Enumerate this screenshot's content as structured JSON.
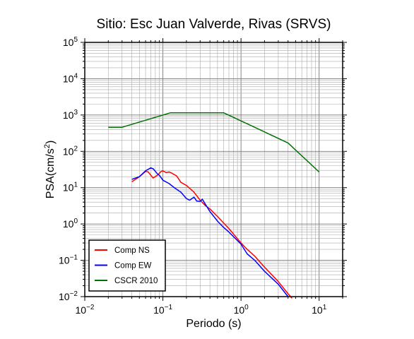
{
  "chart_data": {
    "type": "line",
    "title": "Sitio: Esc Juan Valverde, Rivas (SRVS)",
    "xlabel": "Periodo (s)",
    "ylabel": "PSA(cm/s²)",
    "x_scale": "log",
    "y_scale": "log",
    "xlim": [
      0.01,
      20
    ],
    "ylim": [
      0.01,
      100000
    ],
    "grid": true,
    "legend_position": "bottom-left",
    "x_ticks": [
      {
        "value": 0.01,
        "base": "10",
        "exp": "−2"
      },
      {
        "value": 0.1,
        "base": "10",
        "exp": "−1"
      },
      {
        "value": 1,
        "base": "10",
        "exp": "0"
      },
      {
        "value": 10,
        "base": "10",
        "exp": "1"
      }
    ],
    "y_ticks": [
      {
        "value": 0.01,
        "base": "10",
        "exp": "−2"
      },
      {
        "value": 0.1,
        "base": "10",
        "exp": "−1"
      },
      {
        "value": 1,
        "base": "10",
        "exp": "0"
      },
      {
        "value": 10,
        "base": "10",
        "exp": "1"
      },
      {
        "value": 100,
        "base": "10",
        "exp": "2"
      },
      {
        "value": 1000,
        "base": "10",
        "exp": "3"
      },
      {
        "value": 10000,
        "base": "10",
        "exp": "4"
      },
      {
        "value": 100000,
        "base": "10",
        "exp": "5"
      }
    ],
    "series": [
      {
        "name": "Comp NS",
        "color": "#ff0000",
        "points": [
          [
            0.04,
            14.5
          ],
          [
            0.05,
            20
          ],
          [
            0.06,
            28
          ],
          [
            0.065,
            27
          ],
          [
            0.07,
            22
          ],
          [
            0.075,
            18.5
          ],
          [
            0.085,
            22
          ],
          [
            0.095,
            28
          ],
          [
            0.1,
            29
          ],
          [
            0.11,
            26
          ],
          [
            0.12,
            27
          ],
          [
            0.13,
            25
          ],
          [
            0.15,
            21
          ],
          [
            0.17,
            14
          ],
          [
            0.2,
            11.5
          ],
          [
            0.25,
            7.5
          ],
          [
            0.3,
            4.5
          ],
          [
            0.35,
            3.2
          ],
          [
            0.4,
            2.6
          ],
          [
            0.5,
            1.6
          ],
          [
            0.7,
            0.75
          ],
          [
            1.0,
            0.3
          ],
          [
            1.2,
            0.2
          ],
          [
            1.5,
            0.13
          ],
          [
            2.0,
            0.065
          ],
          [
            3.0,
            0.026
          ],
          [
            4.0,
            0.012
          ],
          [
            4.5,
            0.009
          ]
        ]
      },
      {
        "name": "Comp EW",
        "color": "#0000ff",
        "points": [
          [
            0.04,
            17
          ],
          [
            0.05,
            20
          ],
          [
            0.06,
            29
          ],
          [
            0.07,
            35
          ],
          [
            0.075,
            33
          ],
          [
            0.08,
            28
          ],
          [
            0.085,
            24
          ],
          [
            0.09,
            22
          ],
          [
            0.1,
            16
          ],
          [
            0.12,
            13
          ],
          [
            0.14,
            10
          ],
          [
            0.17,
            7.5
          ],
          [
            0.2,
            5
          ],
          [
            0.22,
            4.5
          ],
          [
            0.25,
            5.5
          ],
          [
            0.27,
            4.3
          ],
          [
            0.3,
            4.2
          ],
          [
            0.32,
            4.8
          ],
          [
            0.35,
            3.5
          ],
          [
            0.4,
            2.2
          ],
          [
            0.45,
            1.6
          ],
          [
            0.5,
            1.2
          ],
          [
            0.6,
            0.8
          ],
          [
            0.7,
            0.6
          ],
          [
            1.0,
            0.28
          ],
          [
            1.2,
            0.15
          ],
          [
            1.5,
            0.1
          ],
          [
            2.0,
            0.05
          ],
          [
            3.0,
            0.022
          ],
          [
            4.0,
            0.01
          ]
        ]
      },
      {
        "name": "CSCR 2010",
        "color": "#007000",
        "points": [
          [
            0.02,
            460
          ],
          [
            0.03,
            460
          ],
          [
            0.125,
            1150
          ],
          [
            0.6,
            1150
          ],
          [
            4.0,
            170
          ],
          [
            10.0,
            27
          ]
        ]
      }
    ]
  }
}
